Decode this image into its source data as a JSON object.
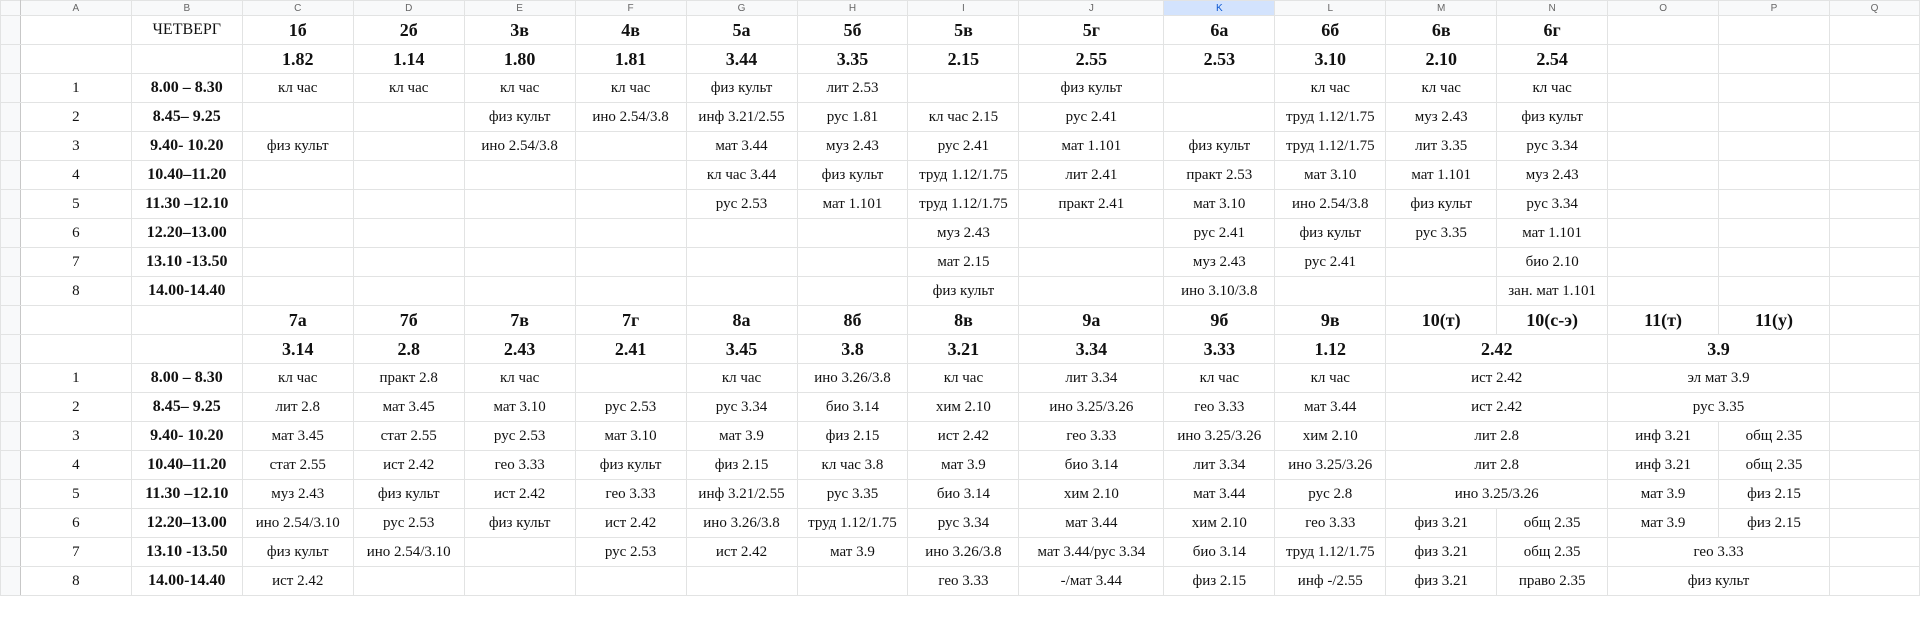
{
  "sheet": {
    "columns": [
      "A",
      "B",
      "C",
      "D",
      "E",
      "F",
      "G",
      "H",
      "I",
      "J",
      "K",
      "L",
      "M",
      "N",
      "O",
      "P",
      "Q"
    ],
    "selected_column": "K",
    "rows": [
      [
        null,
        "ЧЕТВЕРГ",
        "1б",
        "2б",
        "3в",
        "4в",
        "5а",
        "5б",
        "5в",
        "5г",
        "6а",
        "6б",
        "6в",
        "6г",
        null,
        null,
        null
      ],
      [
        null,
        null,
        "1.82",
        "1.14",
        "1.80",
        "1.81",
        "3.44",
        "3.35",
        "2.15",
        "2.55",
        "2.53",
        "3.10",
        "2.10",
        "2.54",
        null,
        null,
        null
      ],
      [
        "1",
        "8.00 – 8.30",
        "кл час",
        "кл час",
        "кл час",
        "кл час",
        "физ культ",
        "лит 2.53",
        null,
        "физ культ",
        null,
        "кл час",
        "кл час",
        "кл час",
        null,
        null,
        null
      ],
      [
        "2",
        "8.45– 9.25",
        null,
        null,
        "физ культ",
        "ино 2.54/3.8",
        "инф 3.21/2.55",
        "рус 1.81",
        "кл час 2.15",
        "рус 2.41",
        null,
        "труд 1.12/1.75",
        "муз 2.43",
        "физ культ",
        null,
        null,
        null
      ],
      [
        "3",
        "9.40- 10.20",
        "физ культ",
        null,
        "ино 2.54/3.8",
        null,
        "мат 3.44",
        "муз 2.43",
        "рус 2.41",
        "мат 1.101",
        "физ культ",
        "труд 1.12/1.75",
        "лит 3.35",
        "рус 3.34",
        null,
        null,
        null
      ],
      [
        "4",
        "10.40–11.20",
        null,
        null,
        null,
        null,
        "кл час 3.44",
        "физ культ",
        "труд 1.12/1.75",
        "лит 2.41",
        "практ 2.53",
        "мат 3.10",
        "мат 1.101",
        "муз 2.43",
        null,
        null,
        null
      ],
      [
        "5",
        "11.30 –12.10",
        null,
        null,
        null,
        null,
        "рус 2.53",
        "мат 1.101",
        "труд 1.12/1.75",
        "практ 2.41",
        "мат 3.10",
        "ино 2.54/3.8",
        "физ культ",
        "рус 3.34",
        null,
        null,
        null
      ],
      [
        "6",
        "12.20–13.00",
        null,
        null,
        null,
        null,
        null,
        null,
        "муз 2.43",
        null,
        "рус 2.41",
        "физ культ",
        "рус 3.35",
        "мат 1.101",
        null,
        null,
        null
      ],
      [
        "7",
        "13.10 -13.50",
        null,
        null,
        null,
        null,
        null,
        null,
        "мат 2.15",
        null,
        "муз 2.43",
        "рус 2.41",
        null,
        "био 2.10",
        null,
        null,
        null
      ],
      [
        "8",
        "14.00-14.40",
        null,
        null,
        null,
        null,
        null,
        null,
        "физ культ",
        null,
        "ино 3.10/3.8",
        null,
        null,
        "зан. мат 1.101",
        null,
        null,
        null
      ],
      [
        null,
        null,
        "7а",
        "7б",
        "7в",
        "7г",
        "8а",
        "8б",
        "8в",
        "9а",
        "9б",
        "9в",
        "10(т)",
        "10(с-э)",
        "11(т)",
        "11(у)",
        null
      ],
      [
        null,
        null,
        "3.14",
        "2.8",
        "2.43",
        "2.41",
        "3.45",
        "3.8",
        "3.21",
        "3.34",
        "3.33",
        "1.12",
        {
          "text": "2.42",
          "span": 2
        },
        {
          "text": "3.9",
          "span": 2
        },
        null
      ],
      [
        "1",
        "8.00 – 8.30",
        "кл час",
        "практ 2.8",
        "кл час",
        null,
        "кл час",
        "ино 3.26/3.8",
        "кл час",
        "лит 3.34",
        "кл час",
        "кл час",
        {
          "text": "ист 2.42",
          "span": 2
        },
        {
          "text": "эл мат 3.9",
          "span": 2
        },
        null
      ],
      [
        "2",
        "8.45– 9.25",
        "лит 2.8",
        "мат 3.45",
        "мат 3.10",
        "рус 2.53",
        "рус 3.34",
        "био 3.14",
        "хим 2.10",
        "ино 3.25/3.26",
        "гео 3.33",
        "мат 3.44",
        {
          "text": "ист 2.42",
          "span": 2
        },
        {
          "text": "рус 3.35",
          "span": 2
        },
        null
      ],
      [
        "3",
        "9.40- 10.20",
        "мат 3.45",
        "стат 2.55",
        "рус 2.53",
        "мат 3.10",
        "мат 3.9",
        "физ 2.15",
        "ист 2.42",
        "гео 3.33",
        "ино 3.25/3.26",
        "хим 2.10",
        {
          "text": "лит 2.8",
          "span": 2
        },
        "инф 3.21",
        "общ 2.35",
        null
      ],
      [
        "4",
        "10.40–11.20",
        "стат 2.55",
        "ист 2.42",
        "гео 3.33",
        "физ культ",
        "физ 2.15",
        "кл час 3.8",
        "мат 3.9",
        "био 3.14",
        "лит 3.34",
        "ино 3.25/3.26",
        {
          "text": "лит 2.8",
          "span": 2
        },
        "инф 3.21",
        "общ 2.35",
        null
      ],
      [
        "5",
        "11.30 –12.10",
        "муз 2.43",
        "физ культ",
        "ист 2.42",
        "гео 3.33",
        "инф 3.21/2.55",
        "рус 3.35",
        "био 3.14",
        "хим 2.10",
        "мат 3.44",
        "рус 2.8",
        {
          "text": "ино 3.25/3.26",
          "span": 2
        },
        "мат 3.9",
        "физ 2.15",
        null
      ],
      [
        "6",
        "12.20–13.00",
        "ино 2.54/3.10",
        "рус 2.53",
        "физ культ",
        "ист 2.42",
        "ино 3.26/3.8",
        "труд 1.12/1.75",
        "рус 3.34",
        "мат 3.44",
        "хим 2.10",
        "гео 3.33",
        "физ 3.21",
        "общ 2.35",
        "мат 3.9",
        "физ 2.15",
        null
      ],
      [
        "7",
        "13.10 -13.50",
        "физ культ",
        "ино 2.54/3.10",
        null,
        "рус 2.53",
        "ист 2.42",
        "мат 3.9",
        "ино 3.26/3.8",
        "мат 3.44/рус 3.34",
        "био 3.14",
        "труд 1.12/1.75",
        "физ 3.21",
        "общ 2.35",
        {
          "text": "гео 3.33",
          "span": 2
        },
        null
      ],
      [
        "8",
        "14.00-14.40",
        "ист 2.42",
        null,
        null,
        null,
        null,
        null,
        "гео 3.33",
        "-/мат 3.44",
        "физ 2.15",
        "инф -/2.55",
        "физ 3.21",
        "право 2.35",
        {
          "text": "физ культ",
          "span": 2
        },
        null
      ]
    ]
  }
}
